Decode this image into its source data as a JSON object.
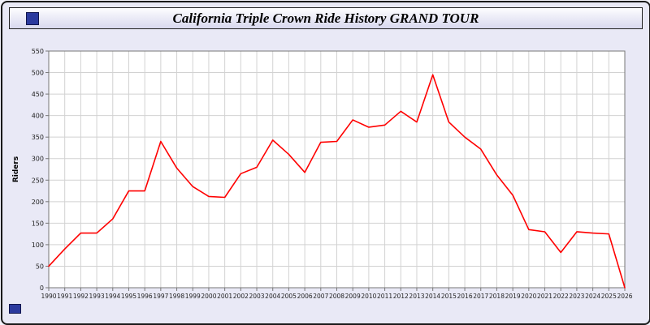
{
  "header": {
    "title": "California Triple Crown Ride History GRAND TOUR"
  },
  "chart_data": {
    "type": "line",
    "title": "California Triple Crown Ride History GRAND TOUR",
    "xlabel": "",
    "ylabel": "Riders",
    "ylim": [
      0,
      550
    ],
    "ytick_step": 50,
    "grid": true,
    "legend_position": "none",
    "line_color": "#ff0000",
    "x": [
      1990,
      1991,
      1992,
      1993,
      1994,
      1995,
      1996,
      1997,
      1998,
      1999,
      2000,
      2001,
      2002,
      2003,
      2004,
      2005,
      2006,
      2007,
      2008,
      2009,
      2010,
      2011,
      2012,
      2013,
      2014,
      2015,
      2016,
      2017,
      2018,
      2019,
      2020,
      2021,
      2022,
      2023,
      2024,
      2025,
      2026
    ],
    "series": [
      {
        "name": "Riders",
        "values": [
          50,
          90,
          127,
          127,
          160,
          225,
          225,
          340,
          278,
          235,
          212,
          210,
          265,
          280,
          343,
          310,
          268,
          338,
          340,
          390,
          373,
          378,
          410,
          385,
          495,
          385,
          350,
          322,
          262,
          215,
          135,
          130,
          82,
          130,
          127,
          125,
          0
        ]
      }
    ]
  },
  "colors": {
    "window_background": "#e9e9f6",
    "plot_background": "#ffffff",
    "grid": "#d2d2d2",
    "axis": "#777777",
    "tick_text": "#222222",
    "accent_blue": "#2b3a9e",
    "line": "#ff0000"
  }
}
